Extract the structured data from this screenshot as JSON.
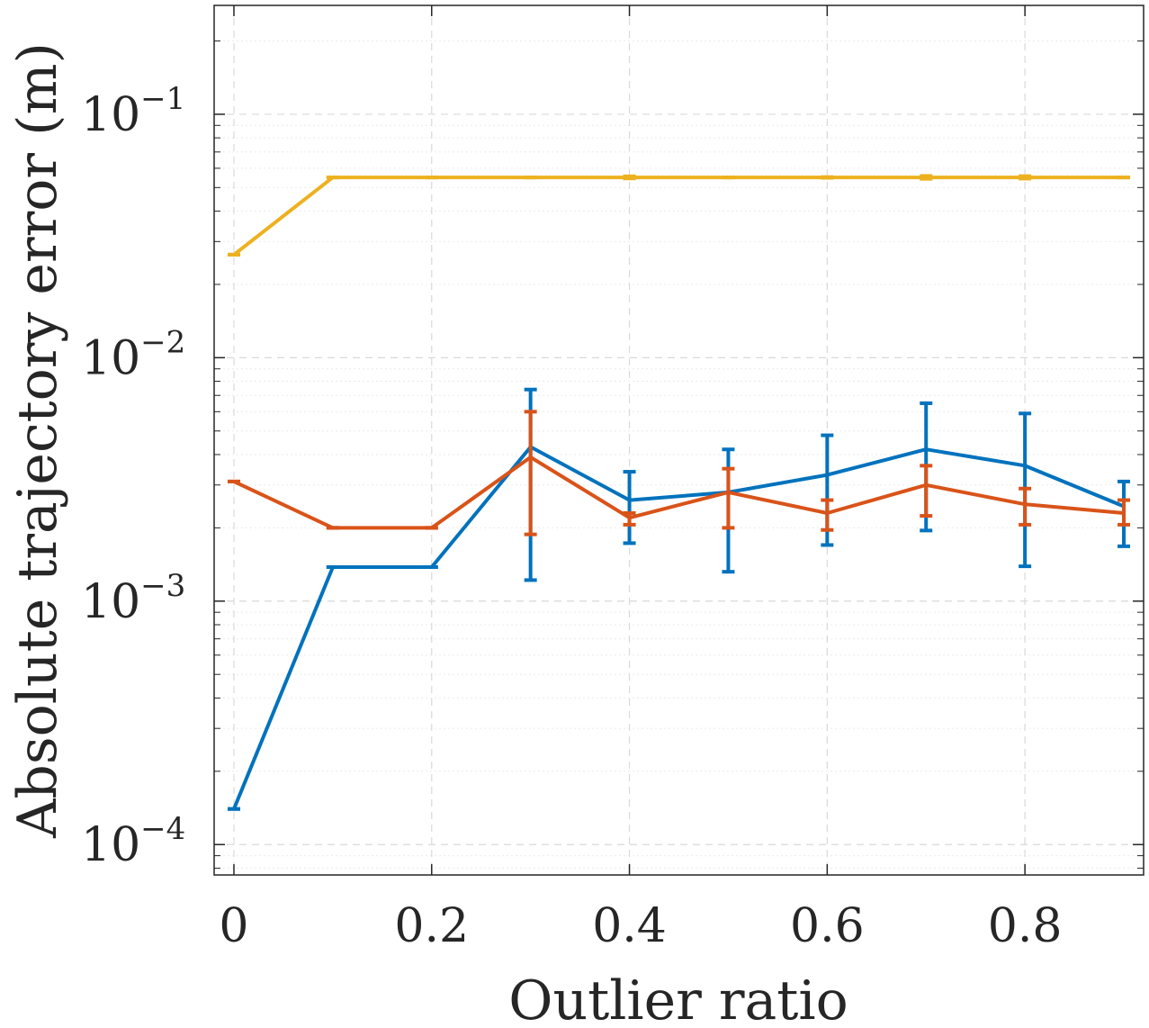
{
  "chart_data": {
    "type": "line",
    "xlabel": "Outlier ratio",
    "ylabel": "Absolute trajectory error (m)",
    "xlim": [
      -0.02,
      0.92
    ],
    "ylim": [
      7.5e-05,
      0.28
    ],
    "yscale": "log",
    "grid": true,
    "x": [
      0,
      0.1,
      0.2,
      0.3,
      0.4,
      0.5,
      0.6,
      0.7,
      0.8,
      0.9
    ],
    "x_ticks": [
      0,
      0.2,
      0.4,
      0.6,
      0.8
    ],
    "x_tick_labels": [
      "0",
      "0.2",
      "0.4",
      "0.6",
      "0.8"
    ],
    "y_ticks": [
      0.0001,
      0.001,
      0.01,
      0.1
    ],
    "y_tick_labels": [
      {
        "base": "10",
        "exp": "−4"
      },
      {
        "base": "10",
        "exp": "−3"
      },
      {
        "base": "10",
        "exp": "−2"
      },
      {
        "base": "10",
        "exp": "−1"
      }
    ],
    "series": [
      {
        "color": "#edb120",
        "values": [
          0.0265,
          0.055,
          0.055,
          0.055,
          0.055,
          0.055,
          0.055,
          0.055,
          0.055,
          0.055
        ],
        "err_low": [
          0.0265,
          0.055,
          0.055,
          0.055,
          0.0545,
          0.055,
          0.0548,
          0.0543,
          0.0544,
          0.055
        ],
        "err_high": [
          0.0265,
          0.055,
          0.055,
          0.055,
          0.0556,
          0.055,
          0.0552,
          0.0558,
          0.0557,
          0.055
        ]
      },
      {
        "color": "#0072bd",
        "values": [
          0.00014,
          0.00138,
          0.00138,
          0.0043,
          0.0026,
          0.0028,
          0.0033,
          0.0042,
          0.0036,
          0.00245
        ],
        "err_low": [
          0.00014,
          0.00138,
          0.00138,
          0.00122,
          0.00173,
          0.00132,
          0.0017,
          0.00195,
          0.00139,
          0.00168
        ],
        "err_high": [
          0.00014,
          0.00138,
          0.00138,
          0.0074,
          0.0034,
          0.0042,
          0.0048,
          0.0065,
          0.0059,
          0.0031
        ]
      },
      {
        "color": "#d95319",
        "values": [
          0.0031,
          0.002,
          0.002,
          0.0039,
          0.0022,
          0.0028,
          0.0023,
          0.003,
          0.0025,
          0.0023
        ],
        "err_low": [
          0.0031,
          0.002,
          0.002,
          0.00188,
          0.00206,
          0.002,
          0.00196,
          0.00224,
          0.00206,
          0.00206
        ],
        "err_high": [
          0.0031,
          0.002,
          0.002,
          0.006,
          0.0023,
          0.0035,
          0.0026,
          0.0036,
          0.0029,
          0.0026
        ]
      }
    ]
  }
}
